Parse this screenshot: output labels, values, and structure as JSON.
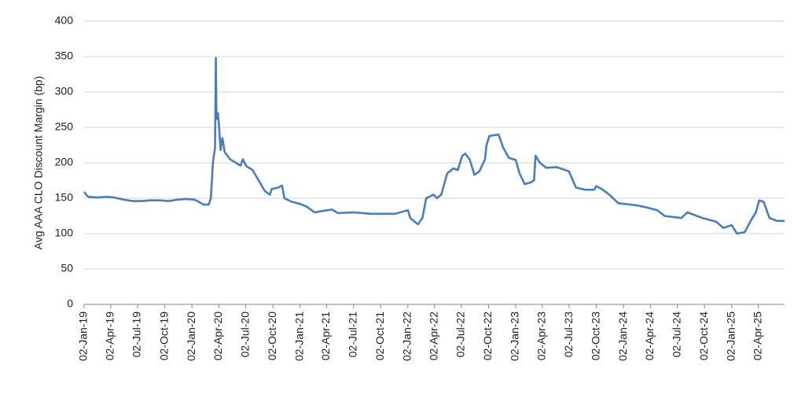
{
  "chart_data": {
    "type": "line",
    "y_label": "Avg AAA CLO Discount Margin (bp)",
    "x": [
      "2019-01-02",
      "2019-01-09",
      "2019-01-16",
      "2019-02-15",
      "2019-03-20",
      "2019-04-15",
      "2019-05-15",
      "2019-06-15",
      "2019-07-15",
      "2019-08-15",
      "2019-09-15",
      "2019-10-15",
      "2019-11-15",
      "2019-12-15",
      "2020-01-10",
      "2020-01-25",
      "2020-02-10",
      "2020-02-28",
      "2020-03-06",
      "2020-03-13",
      "2020-03-16",
      "2020-03-20",
      "2020-03-23",
      "2020-03-25",
      "2020-03-30",
      "2020-04-03",
      "2020-04-08",
      "2020-04-14",
      "2020-04-22",
      "2020-05-10",
      "2020-05-30",
      "2020-06-15",
      "2020-06-22",
      "2020-07-05",
      "2020-07-25",
      "2020-08-15",
      "2020-09-05",
      "2020-09-22",
      "2020-09-28",
      "2020-10-20",
      "2020-11-02",
      "2020-11-10",
      "2020-12-05",
      "2021-01-02",
      "2021-01-25",
      "2021-02-20",
      "2021-03-20",
      "2021-04-20",
      "2021-05-10",
      "2021-07-01",
      "2021-09-01",
      "2021-11-20",
      "2022-01-02",
      "2022-01-10",
      "2022-02-05",
      "2022-02-20",
      "2022-03-05",
      "2022-03-30",
      "2022-04-10",
      "2022-04-25",
      "2022-05-15",
      "2022-06-05",
      "2022-06-20",
      "2022-07-05",
      "2022-07-15",
      "2022-07-30",
      "2022-08-15",
      "2022-09-01",
      "2022-09-20",
      "2022-09-25",
      "2022-10-05",
      "2022-11-05",
      "2022-11-20",
      "2022-12-10",
      "2023-01-02",
      "2023-01-15",
      "2023-02-01",
      "2023-02-20",
      "2023-03-05",
      "2023-03-10",
      "2023-03-25",
      "2023-04-15",
      "2023-05-20",
      "2023-07-01",
      "2023-07-25",
      "2023-08-25",
      "2023-09-25",
      "2023-10-01",
      "2023-10-20",
      "2023-11-15",
      "2023-12-15",
      "2024-02-15",
      "2024-03-20",
      "2024-04-25",
      "2024-05-20",
      "2024-07-15",
      "2024-08-05",
      "2024-09-25",
      "2024-11-10",
      "2024-12-05",
      "2025-01-02",
      "2025-01-20",
      "2025-02-15",
      "2025-03-10",
      "2025-03-25",
      "2025-04-05",
      "2025-04-20",
      "2025-05-10",
      "2025-06-05",
      "2025-06-30"
    ],
    "values": [
      159,
      155,
      152,
      151,
      152,
      151,
      148,
      146,
      146,
      147,
      147,
      146,
      148,
      149,
      148,
      145,
      141,
      141,
      150,
      200,
      210,
      220,
      348,
      262,
      270,
      250,
      218,
      235,
      215,
      205,
      200,
      196,
      205,
      195,
      190,
      175,
      160,
      155,
      163,
      165,
      168,
      150,
      145,
      142,
      138,
      130,
      132,
      134,
      129,
      130,
      128,
      128,
      133,
      122,
      113,
      122,
      150,
      155,
      150,
      155,
      185,
      192,
      190,
      210,
      213,
      205,
      183,
      188,
      205,
      225,
      238,
      240,
      222,
      207,
      204,
      185,
      170,
      172,
      175,
      210,
      200,
      193,
      194,
      188,
      165,
      162,
      162,
      167,
      163,
      155,
      143,
      140,
      137,
      133,
      125,
      122,
      130,
      122,
      117,
      108,
      112,
      100,
      102,
      120,
      130,
      147,
      145,
      122,
      118,
      118
    ],
    "color": "#4a7ebb",
    "xlim": [
      "2019-01-02",
      "2025-06-30"
    ],
    "xticks": [
      {
        "value": "2019-01-02",
        "label": "02-Jan-19"
      },
      {
        "value": "2019-04-02",
        "label": "02-Apr-19"
      },
      {
        "value": "2019-07-02",
        "label": "02-Jul-19"
      },
      {
        "value": "2019-10-02",
        "label": "02-Oct-19"
      },
      {
        "value": "2020-01-02",
        "label": "02-Jan-20"
      },
      {
        "value": "2020-04-02",
        "label": "02-Apr-20"
      },
      {
        "value": "2020-07-02",
        "label": "02-Jul-20"
      },
      {
        "value": "2020-10-02",
        "label": "02-Oct-20"
      },
      {
        "value": "2021-01-02",
        "label": "02-Jan-21"
      },
      {
        "value": "2021-04-02",
        "label": "02-Apr-21"
      },
      {
        "value": "2021-07-02",
        "label": "02-Jul-21"
      },
      {
        "value": "2021-10-02",
        "label": "02-Oct-21"
      },
      {
        "value": "2022-01-02",
        "label": "02-Jan-22"
      },
      {
        "value": "2022-04-02",
        "label": "02-Apr-22"
      },
      {
        "value": "2022-07-02",
        "label": "02-Jul-22"
      },
      {
        "value": "2022-10-02",
        "label": "02-Oct-22"
      },
      {
        "value": "2023-01-02",
        "label": "02-Jan-23"
      },
      {
        "value": "2023-04-02",
        "label": "02-Apr-23"
      },
      {
        "value": "2023-07-02",
        "label": "02-Jul-23"
      },
      {
        "value": "2023-10-02",
        "label": "02-Oct-23"
      },
      {
        "value": "2024-01-02",
        "label": "02-Jan-24"
      },
      {
        "value": "2024-04-02",
        "label": "02-Apr-24"
      },
      {
        "value": "2024-07-02",
        "label": "02-Jul-24"
      },
      {
        "value": "2024-10-02",
        "label": "02-Oct-24"
      },
      {
        "value": "2025-01-02",
        "label": "02-Jan-25"
      },
      {
        "value": "2025-04-02",
        "label": "02-Apr-25"
      }
    ],
    "ylim": [
      0,
      400
    ],
    "yticks": [
      0,
      50,
      100,
      150,
      200,
      250,
      300,
      350,
      400
    ],
    "grid": true
  }
}
